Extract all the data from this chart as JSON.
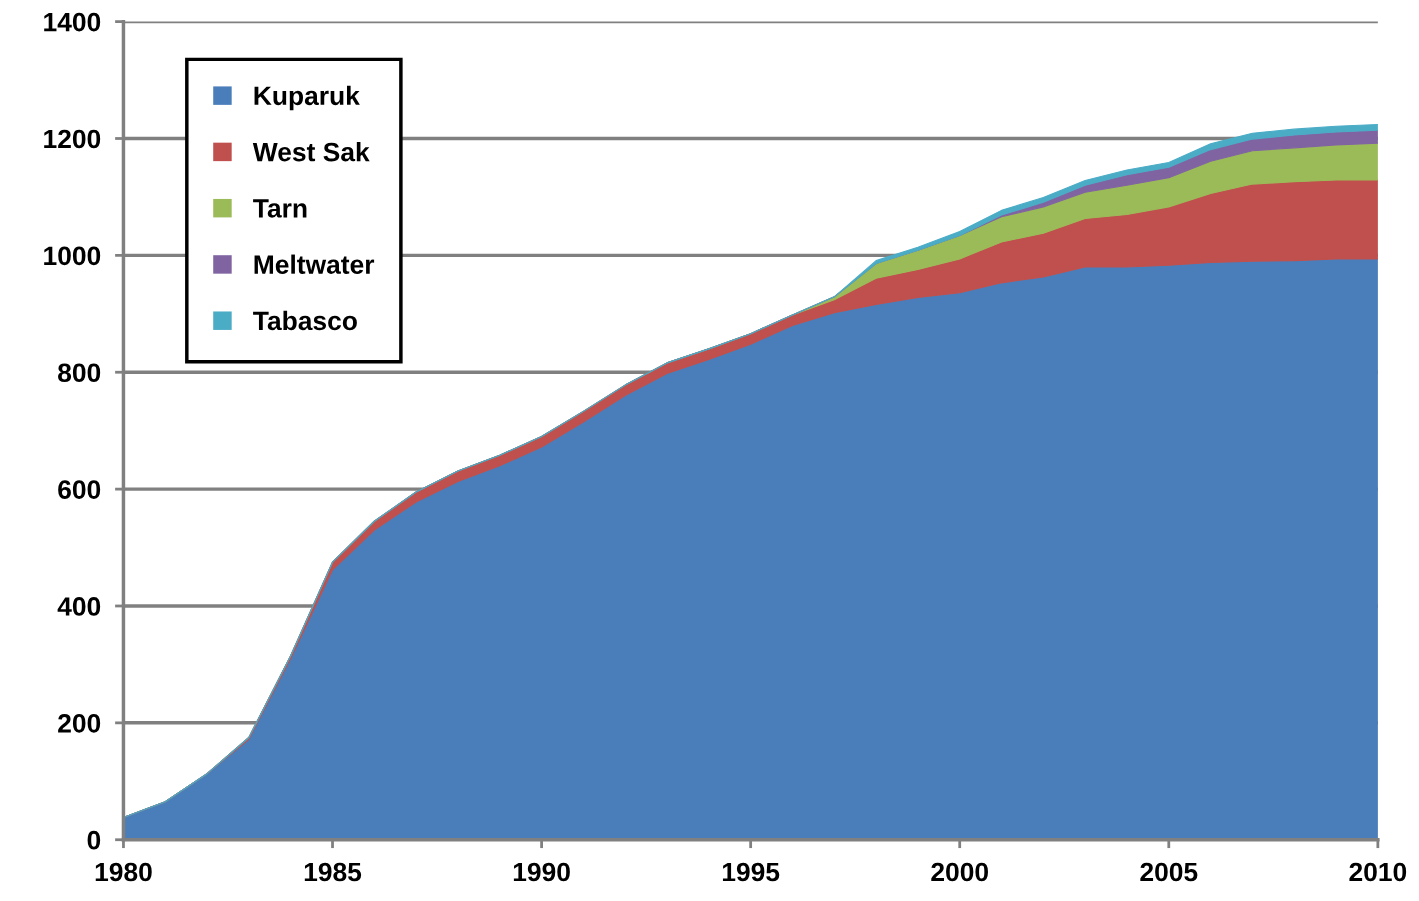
{
  "chart_data": {
    "type": "area",
    "stacked": true,
    "x": [
      1980,
      1981,
      1982,
      1983,
      1984,
      1985,
      1986,
      1987,
      1988,
      1989,
      1990,
      1991,
      1992,
      1993,
      1994,
      1995,
      1996,
      1997,
      1998,
      1999,
      2000,
      2001,
      2002,
      2003,
      2004,
      2005,
      2006,
      2007,
      2008,
      2009,
      2010
    ],
    "series": [
      {
        "name": "Kuparuk",
        "color": "#4a7ebb",
        "values": [
          38,
          65,
          113,
          172,
          310,
          462,
          530,
          578,
          613,
          640,
          672,
          715,
          760,
          798,
          822,
          848,
          880,
          902,
          916,
          928,
          936,
          953,
          963,
          980,
          980,
          983,
          988,
          990,
          991,
          994,
          994
        ]
      },
      {
        "name": "West Sak",
        "color": "#c0504d",
        "values": [
          0,
          0,
          0,
          3,
          5,
          13,
          15,
          17,
          18,
          18,
          18,
          18,
          18,
          18,
          18,
          18,
          18,
          22,
          45,
          48,
          58,
          70,
          75,
          83,
          90,
          100,
          118,
          132,
          135,
          135,
          135
        ]
      },
      {
        "name": "Tarn",
        "color": "#9bbb59",
        "values": [
          0,
          0,
          0,
          0,
          0,
          0,
          0,
          0,
          0,
          0,
          0,
          0,
          0,
          0,
          0,
          0,
          0,
          5,
          25,
          33,
          40,
          43,
          45,
          45,
          50,
          50,
          55,
          57,
          58,
          60,
          63
        ]
      },
      {
        "name": "Meltwater",
        "color": "#8064a2",
        "values": [
          0,
          0,
          0,
          0,
          0,
          0,
          0,
          0,
          0,
          0,
          0,
          0,
          0,
          0,
          0,
          0,
          0,
          0,
          0,
          0,
          0,
          3,
          8,
          12,
          18,
          18,
          20,
          20,
          22,
          22,
          22
        ]
      },
      {
        "name": "Tabasco",
        "color": "#4bacc6",
        "values": [
          0,
          0,
          0,
          0,
          0,
          0,
          0,
          0,
          0,
          0,
          0,
          0,
          0,
          0,
          0,
          0,
          0,
          0,
          5,
          5,
          7,
          8,
          8,
          8,
          8,
          8,
          10,
          10,
          10,
          10,
          10
        ]
      }
    ],
    "xlim": [
      1980,
      2010
    ],
    "xticks": [
      1980,
      1985,
      1990,
      1995,
      2000,
      2005,
      2010
    ],
    "ylim": [
      0,
      1400
    ],
    "yticks": [
      0,
      200,
      400,
      600,
      800,
      1000,
      1200,
      1400
    ],
    "grid": "y",
    "legend": "top left"
  }
}
